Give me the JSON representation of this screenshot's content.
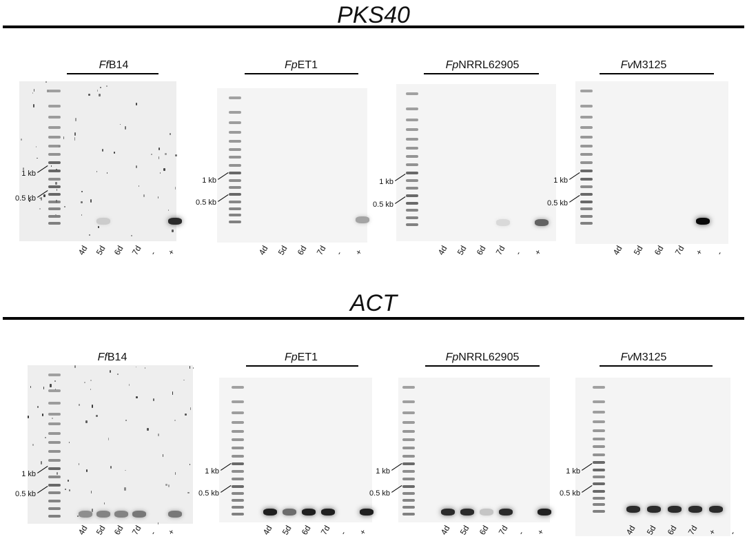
{
  "figure": {
    "sections": [
      {
        "title": "PKS40",
        "panels": [
          {
            "strain_italic": "Ff",
            "strain_rest": "B14",
            "kb1": "1 kb",
            "kb05": "0.5 kb",
            "lanes": [
              "4d",
              "5d",
              "6d",
              "7d",
              "-",
              "+"
            ],
            "bands": [
              0,
              0.12,
              0,
              0,
              0,
              0.85
            ],
            "noisy": true
          },
          {
            "strain_italic": "Fp",
            "strain_rest": "ET1",
            "kb1": "1 kb",
            "kb05": "0.5 kb",
            "lanes": [
              "4d",
              "5d",
              "6d",
              "7d",
              "-",
              "+"
            ],
            "bands": [
              0,
              0,
              0,
              0,
              0,
              0.3
            ],
            "noisy": false
          },
          {
            "strain_italic": "Fp",
            "strain_rest": "NRRL62905",
            "kb1": "1 kb",
            "kb05": "0.5 kb",
            "lanes": [
              "4d",
              "5d",
              "6d",
              "7d",
              "-",
              "+"
            ],
            "bands": [
              0,
              0,
              0,
              0.06,
              0,
              0.6
            ],
            "noisy": false
          },
          {
            "strain_italic": "Fv",
            "strain_rest": "M3125",
            "kb1": "1 kb",
            "kb05": "0.5 kb",
            "lanes": [
              "4d",
              "5d",
              "6d",
              "7d",
              "+",
              "-"
            ],
            "bands": [
              0,
              0,
              0,
              0,
              1.0,
              0
            ],
            "noisy": false
          }
        ]
      },
      {
        "title": "ACT",
        "panels": [
          {
            "strain_italic": "Ff",
            "strain_rest": "B14",
            "kb1": "1 kb",
            "kb05": "0.5 kb",
            "lanes": [
              "4d",
              "5d",
              "6d",
              "7d",
              "-",
              "+"
            ],
            "bands": [
              0.4,
              0.45,
              0.45,
              0.5,
              0,
              0.5
            ],
            "noisy": true
          },
          {
            "strain_italic": "Fp",
            "strain_rest": "ET1",
            "kb1": "1 kb",
            "kb05": "0.5 kb",
            "lanes": [
              "4d",
              "5d",
              "6d",
              "7d",
              "-",
              "+"
            ],
            "bands": [
              0.9,
              0.55,
              0.9,
              0.9,
              0,
              0.9
            ],
            "noisy": false
          },
          {
            "strain_italic": "Fp",
            "strain_rest": "NRRL62905",
            "kb1": "1 kb",
            "kb05": "0.5 kb",
            "lanes": [
              "4d",
              "5d",
              "6d",
              "7d",
              "-",
              "+"
            ],
            "bands": [
              0.85,
              0.85,
              0.15,
              0.85,
              0,
              0.9
            ],
            "noisy": false
          },
          {
            "strain_italic": "Fv",
            "strain_rest": "M3125",
            "kb1": "1 kb",
            "kb05": "0.5 kb",
            "lanes": [
              "4d",
              "5d",
              "6d",
              "7d",
              "+",
              "-"
            ],
            "bands": [
              0.85,
              0.85,
              0.85,
              0.85,
              0.85,
              0
            ],
            "noisy": false
          }
        ]
      }
    ]
  }
}
